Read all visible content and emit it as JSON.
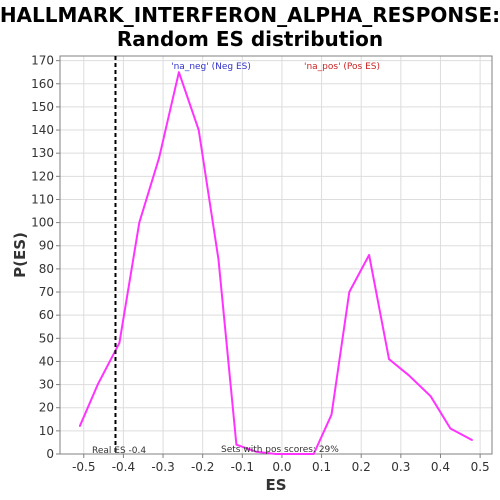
{
  "chart_data": {
    "type": "line",
    "title_line1": "HALLMARK_INTERFERON_ALPHA_RESPONSE:",
    "title_line2": "Random ES distribution",
    "xlabel": "ES",
    "ylabel": "P(ES)",
    "xlim": [
      -0.56,
      0.53
    ],
    "ylim": [
      0,
      172
    ],
    "x_ticks": [
      -0.5,
      -0.4,
      -0.3,
      -0.2,
      -0.1,
      0.0,
      0.1,
      0.2,
      0.3,
      0.4,
      0.5
    ],
    "x_tick_labels": [
      "-0.5",
      "-0.4",
      "-0.3",
      "-0.2",
      "-0.1",
      "0.0",
      "0.1",
      "0.2",
      "0.3",
      "0.4",
      "0.5"
    ],
    "y_ticks": [
      0,
      10,
      20,
      30,
      40,
      50,
      60,
      70,
      80,
      90,
      100,
      110,
      120,
      130,
      140,
      150,
      160,
      170
    ],
    "y_tick_labels": [
      "0",
      "10",
      "20",
      "30",
      "40",
      "50",
      "60",
      "70",
      "80",
      "90",
      "100",
      "110",
      "120",
      "130",
      "140",
      "150",
      "160",
      "170"
    ],
    "grid": true,
    "series": [
      {
        "color": "#ff33ff",
        "points": [
          [
            -0.51,
            12
          ],
          [
            -0.465,
            30
          ],
          [
            -0.41,
            48
          ],
          [
            -0.36,
            100
          ],
          [
            -0.31,
            128
          ],
          [
            -0.26,
            165
          ],
          [
            -0.21,
            140
          ],
          [
            -0.16,
            84
          ],
          [
            -0.115,
            4
          ],
          [
            -0.065,
            1
          ],
          [
            -0.015,
            0
          ],
          [
            0.035,
            0
          ],
          [
            0.08,
            0
          ],
          [
            0.125,
            17
          ],
          [
            0.17,
            70
          ],
          [
            0.22,
            86
          ],
          [
            0.27,
            41
          ],
          [
            0.32,
            34
          ],
          [
            0.375,
            25
          ],
          [
            0.425,
            11
          ],
          [
            0.48,
            6
          ]
        ]
      }
    ],
    "real_es": -0.42,
    "real_es_label": "Real ES -0.4",
    "neg_label": "'na_neg' (Neg ES)",
    "neg_color": "#3333cc",
    "pos_label": "'na_pos' (Pos ES)",
    "pos_color": "#cc2222",
    "sets_pos_label": "Sets with pos scores: 29%"
  }
}
